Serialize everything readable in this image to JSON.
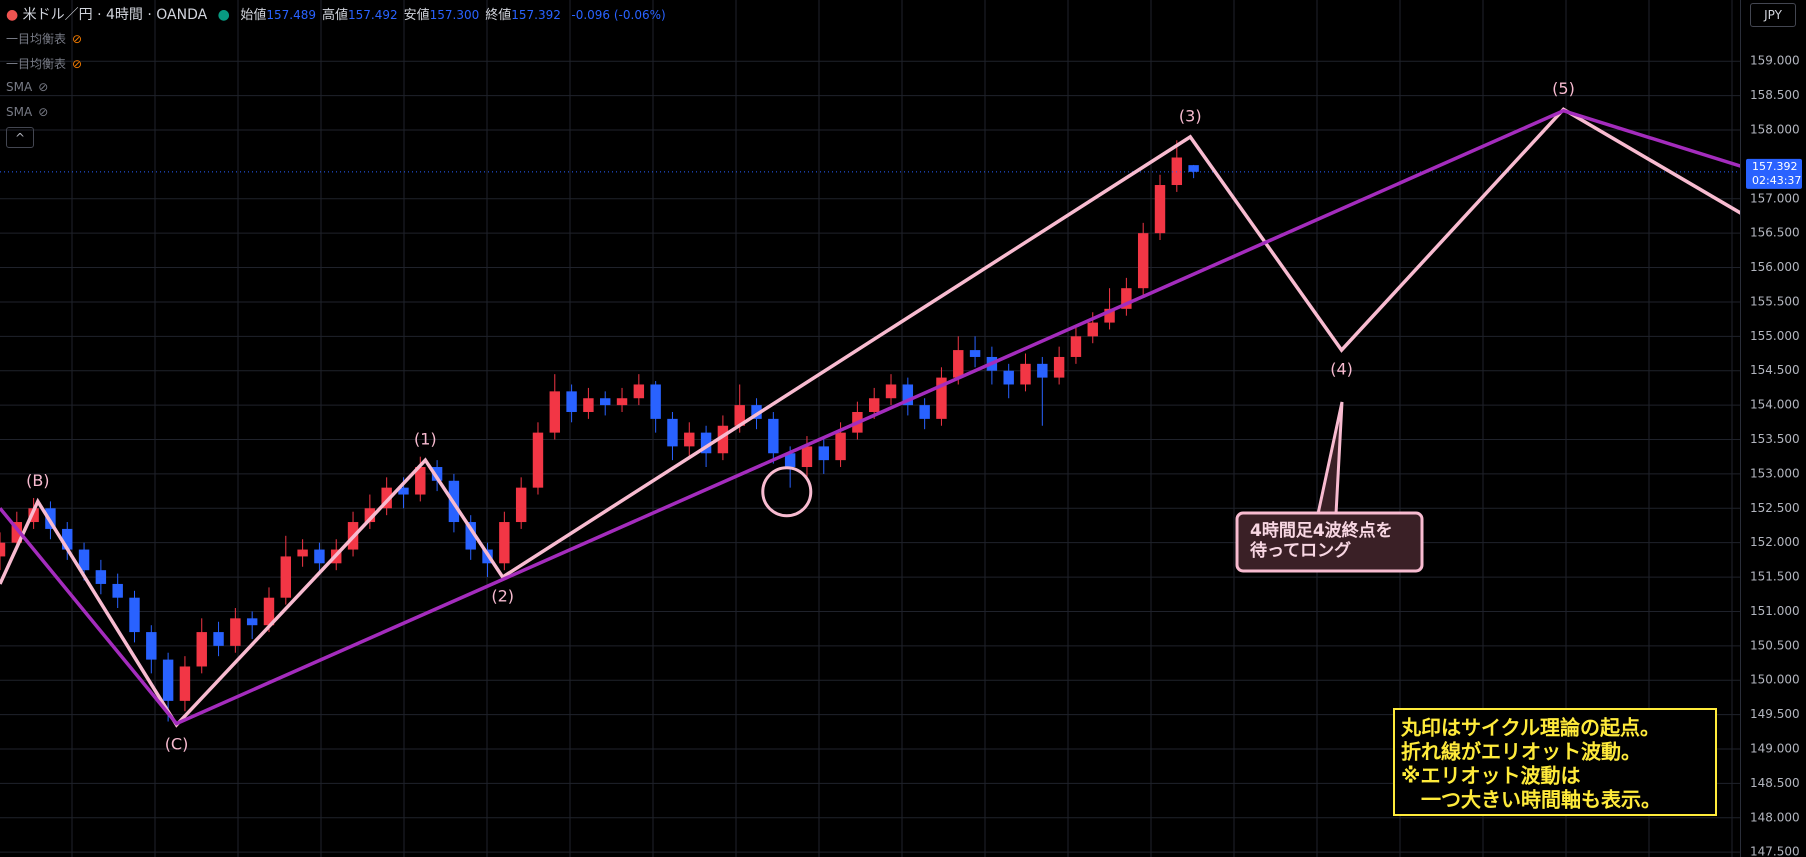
{
  "chart_data": {
    "type": "candlestick",
    "title": "米ドル／円 · 4時間 · OANDA",
    "ohlc_header": [
      {
        "name": "始値",
        "value": "157.489"
      },
      {
        "name": "高値",
        "value": "157.492"
      },
      {
        "name": "安値",
        "value": "157.300"
      },
      {
        "name": "終値",
        "value": "157.392"
      }
    ],
    "change": "-0.096 (-0.06%)",
    "indicators": [
      "一目均衡表",
      "一目均衡表",
      "SMA",
      "SMA"
    ],
    "currency": "JPY",
    "up_color": "#f23645",
    "down_color": "#2962ff",
    "open": [
      151.8,
      152.0,
      152.3,
      152.5,
      152.2,
      151.9,
      151.6,
      151.4,
      151.2,
      150.7,
      150.3,
      149.7,
      150.2,
      150.7,
      150.5,
      150.9,
      150.8,
      151.2,
      151.8,
      151.9,
      151.7,
      151.9,
      152.3,
      152.5,
      152.8,
      152.7,
      153.1,
      152.9,
      152.3,
      151.9,
      151.7,
      152.3,
      152.8,
      153.6,
      154.2,
      153.9,
      154.1,
      154.0,
      154.1,
      154.3,
      153.8,
      153.4,
      153.6,
      153.3,
      153.7,
      154.0,
      153.8,
      153.3,
      153.1,
      153.4,
      153.2,
      153.6,
      153.9,
      154.1,
      154.3,
      154.0,
      153.8,
      154.4,
      154.8,
      154.7,
      154.5,
      154.3,
      154.6,
      154.4,
      154.7,
      155.0,
      155.2,
      155.4,
      155.7,
      156.5,
      157.2,
      157.489
    ],
    "high": [
      152.15,
      152.45,
      152.65,
      152.6,
      152.3,
      152.0,
      151.75,
      151.55,
      151.3,
      150.8,
      150.4,
      150.35,
      150.9,
      150.85,
      151.05,
      151.0,
      151.35,
      152.1,
      152.05,
      152.0,
      152.05,
      152.45,
      152.7,
      152.95,
      152.95,
      153.25,
      153.2,
      153.0,
      152.4,
      152.0,
      152.45,
      152.95,
      153.75,
      154.45,
      154.3,
      154.25,
      154.2,
      154.25,
      154.45,
      154.35,
      153.9,
      153.75,
      153.7,
      153.85,
      154.3,
      154.1,
      153.9,
      153.4,
      153.55,
      153.5,
      153.75,
      154.05,
      154.25,
      154.45,
      154.4,
      154.1,
      154.55,
      155.0,
      155.0,
      154.85,
      154.6,
      154.75,
      154.7,
      154.85,
      155.15,
      155.35,
      155.7,
      155.85,
      156.65,
      157.35,
      157.85,
      157.492
    ],
    "low": [
      151.6,
      151.9,
      152.2,
      152.05,
      151.75,
      151.45,
      151.25,
      151.05,
      150.55,
      150.1,
      149.4,
      149.55,
      150.1,
      150.35,
      150.4,
      150.6,
      150.7,
      151.1,
      151.65,
      151.55,
      151.6,
      151.8,
      152.2,
      152.4,
      152.5,
      152.6,
      152.75,
      152.15,
      151.75,
      151.5,
      151.6,
      152.2,
      152.7,
      153.5,
      153.75,
      153.8,
      153.85,
      153.9,
      154.0,
      153.6,
      153.2,
      153.25,
      153.1,
      153.2,
      153.6,
      153.65,
      153.15,
      152.8,
      152.95,
      153.0,
      153.1,
      153.5,
      153.8,
      154.0,
      153.85,
      153.65,
      153.7,
      154.3,
      154.55,
      154.3,
      154.1,
      154.2,
      153.7,
      154.3,
      154.6,
      154.9,
      155.1,
      155.3,
      155.6,
      156.4,
      157.1,
      157.3
    ],
    "close": [
      152.0,
      152.3,
      152.5,
      152.2,
      151.9,
      151.6,
      151.4,
      151.2,
      150.7,
      150.3,
      149.7,
      150.2,
      150.7,
      150.5,
      150.9,
      150.8,
      151.2,
      151.8,
      151.9,
      151.7,
      151.9,
      152.3,
      152.5,
      152.8,
      152.7,
      153.1,
      152.9,
      152.3,
      151.9,
      151.7,
      152.3,
      152.8,
      153.6,
      154.2,
      153.9,
      154.1,
      154.0,
      154.1,
      154.3,
      153.8,
      153.4,
      153.6,
      153.3,
      153.7,
      154.0,
      153.8,
      153.3,
      153.1,
      153.4,
      153.2,
      153.6,
      153.9,
      154.1,
      154.3,
      154.0,
      153.8,
      154.4,
      154.8,
      154.7,
      154.5,
      154.3,
      154.6,
      154.4,
      154.7,
      155.0,
      155.2,
      155.4,
      155.7,
      156.5,
      157.2,
      157.6,
      157.392
    ],
    "xlim": [
      0,
      103.5
    ],
    "ylim": [
      147.43,
      159.89
    ],
    "yticks": [
      {
        "value": 147.5,
        "label": "147.500"
      },
      {
        "value": 148,
        "label": "148.000"
      },
      {
        "value": 148.5,
        "label": "148.500"
      },
      {
        "value": 149,
        "label": "149.000"
      },
      {
        "value": 149.5,
        "label": "149.500"
      },
      {
        "value": 150,
        "label": "150.000"
      },
      {
        "value": 150.5,
        "label": "150.500"
      },
      {
        "value": 151,
        "label": "151.000"
      },
      {
        "value": 151.5,
        "label": "151.500"
      },
      {
        "value": 152,
        "label": "152.000"
      },
      {
        "value": 152.5,
        "label": "152.500"
      },
      {
        "value": 153,
        "label": "153.000"
      },
      {
        "value": 153.5,
        "label": "153.500"
      },
      {
        "value": 154,
        "label": "154.000"
      },
      {
        "value": 154.5,
        "label": "154.500"
      },
      {
        "value": 155,
        "label": "155.000"
      },
      {
        "value": 155.5,
        "label": "155.500"
      },
      {
        "value": 156,
        "label": "156.000"
      },
      {
        "value": 156.5,
        "label": "156.500"
      },
      {
        "value": 157,
        "label": "157.000"
      },
      {
        "value": 158,
        "label": "158.000"
      },
      {
        "value": 158.5,
        "label": "158.500"
      },
      {
        "value": 159,
        "label": "159.000"
      }
    ],
    "last_price": {
      "value": 157.392,
      "label": "157.392"
    },
    "countdown": "02:43:37",
    "waves": [
      {
        "color": "#f8bbd0",
        "x": [
          0,
          2.25,
          10.5,
          25.3,
          29.9,
          70.8,
          79.8,
          93,
          107.4
        ],
        "y": [
          151.4,
          152.6,
          149.35,
          153.2,
          151.5,
          157.9,
          154.8,
          158.3,
          156.24
        ]
      },
      {
        "color": "#a42cbd",
        "x": [
          0,
          10.5,
          93,
          107.4
        ],
        "y": [
          152.5,
          149.37,
          158.28,
          157.18
        ]
      }
    ],
    "wave_labels": [
      {
        "text": "(B)",
        "x": 2.25,
        "y": 152.6,
        "side": "above"
      },
      {
        "text": "(C)",
        "x": 10.5,
        "y": 149.35,
        "side": "below"
      },
      {
        "text": "(1)",
        "x": 25.3,
        "y": 153.2,
        "side": "above"
      },
      {
        "text": "(2)",
        "x": 29.9,
        "y": 151.5,
        "side": "below"
      },
      {
        "text": "(3)",
        "x": 70.8,
        "y": 157.9,
        "side": "above"
      },
      {
        "text": "(4)",
        "x": 79.8,
        "y": 154.8,
        "side": "below"
      },
      {
        "text": "(5)",
        "x": 93,
        "y": 158.3,
        "side": "above"
      }
    ],
    "circle": {
      "x": 46.8,
      "y": 152.74
    },
    "callout": [
      "4時間足4波終点を",
      "待ってロング"
    ],
    "note": [
      "丸印はサイクル理論の起点。",
      "折れ線がエリオット波動。",
      "※エリオット波動は",
      "　一つ大きい時間軸も表示。"
    ]
  }
}
